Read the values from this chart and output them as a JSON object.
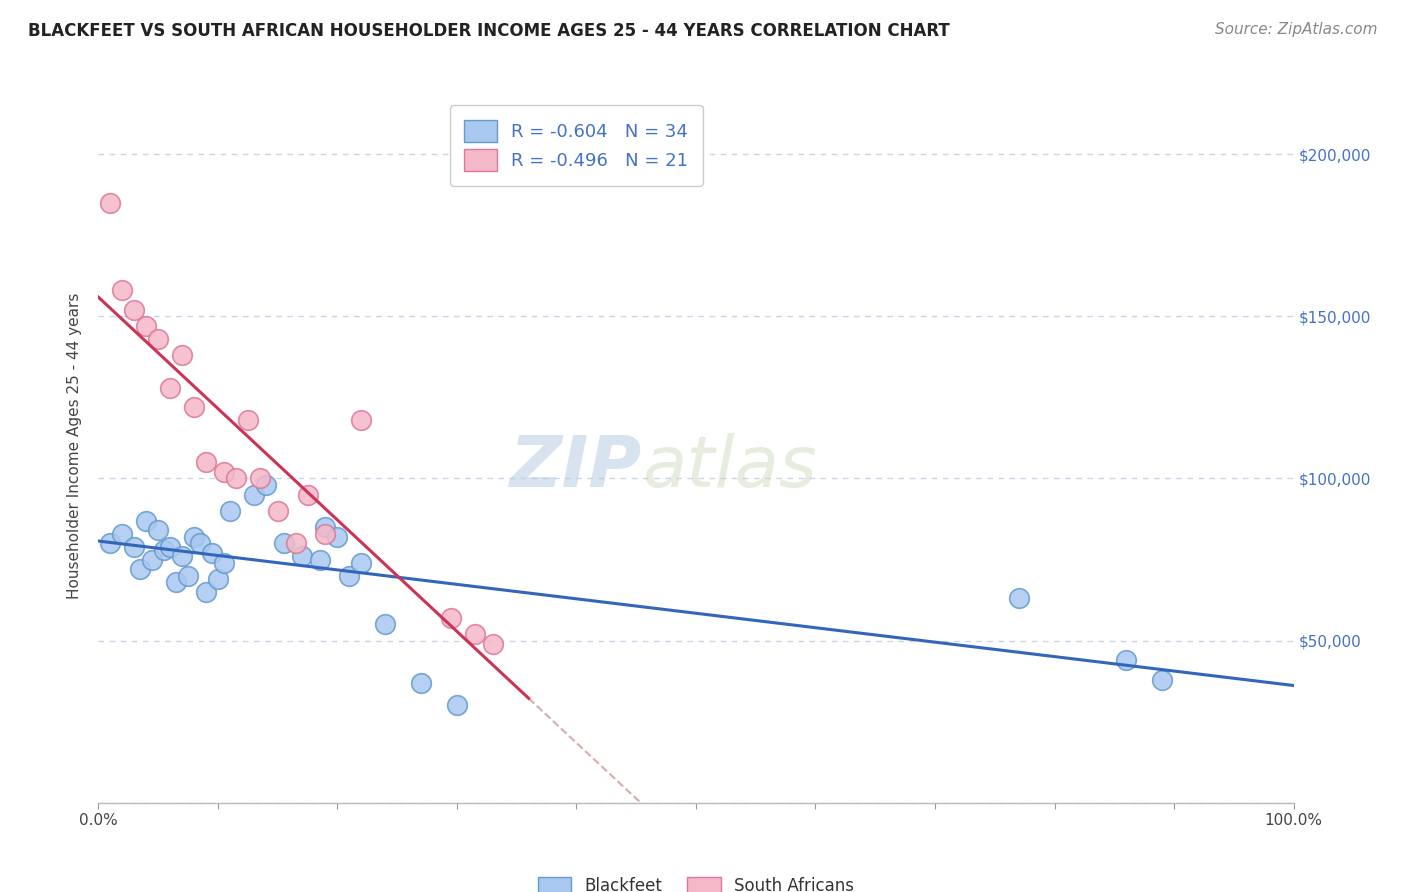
{
  "title": "BLACKFEET VS SOUTH AFRICAN HOUSEHOLDER INCOME AGES 25 - 44 YEARS CORRELATION CHART",
  "source": "Source: ZipAtlas.com",
  "ylabel": "Householder Income Ages 25 - 44 years",
  "xlim": [
    0.0,
    1.0
  ],
  "ylim": [
    0,
    220000
  ],
  "xticks": [
    0.0,
    0.1,
    0.2,
    0.3,
    0.4,
    0.5,
    0.6,
    0.7,
    0.8,
    0.9,
    1.0
  ],
  "xticklabels": [
    "0.0%",
    "",
    "",
    "",
    "",
    "",
    "",
    "",
    "",
    "",
    "100.0%"
  ],
  "yticks": [
    0,
    50000,
    100000,
    150000,
    200000
  ],
  "yticklabels": [
    "",
    "$50,000",
    "$100,000",
    "$150,000",
    "$200,000"
  ],
  "legend_r_blackfeet": "-0.604",
  "legend_n_blackfeet": "34",
  "legend_r_sa": "-0.496",
  "legend_n_sa": "21",
  "watermark_zip": "ZIP",
  "watermark_atlas": "atlas",
  "blackfeet_color": "#a8c8f0",
  "blackfeet_edge_color": "#6699cc",
  "sa_color": "#f5b8c8",
  "sa_edge_color": "#dd7799",
  "line_blackfeet_color": "#3366bb",
  "line_sa_color": "#cc3355",
  "dash_color": "#ddaaaa",
  "grid_color": "#c8d4e8",
  "blackfeet_x": [
    0.01,
    0.02,
    0.03,
    0.035,
    0.04,
    0.045,
    0.05,
    0.055,
    0.06,
    0.065,
    0.07,
    0.075,
    0.08,
    0.085,
    0.09,
    0.095,
    0.1,
    0.105,
    0.11,
    0.13,
    0.14,
    0.155,
    0.17,
    0.185,
    0.19,
    0.2,
    0.21,
    0.22,
    0.24,
    0.27,
    0.3,
    0.77,
    0.86,
    0.89
  ],
  "blackfeet_y": [
    80000,
    83000,
    79000,
    72000,
    87000,
    75000,
    84000,
    78000,
    79000,
    68000,
    76000,
    70000,
    82000,
    80000,
    65000,
    77000,
    69000,
    74000,
    90000,
    95000,
    98000,
    80000,
    76000,
    75000,
    85000,
    82000,
    70000,
    74000,
    55000,
    37000,
    30000,
    63000,
    44000,
    38000
  ],
  "sa_x": [
    0.01,
    0.02,
    0.03,
    0.04,
    0.05,
    0.06,
    0.07,
    0.08,
    0.09,
    0.105,
    0.115,
    0.125,
    0.135,
    0.15,
    0.165,
    0.175,
    0.19,
    0.22,
    0.295,
    0.315,
    0.33
  ],
  "sa_y": [
    185000,
    158000,
    152000,
    147000,
    143000,
    128000,
    138000,
    122000,
    105000,
    102000,
    100000,
    118000,
    100000,
    90000,
    80000,
    95000,
    83000,
    118000,
    57000,
    52000,
    49000
  ],
  "title_fontsize": 12,
  "axis_label_fontsize": 11,
  "tick_fontsize": 11,
  "legend_fontsize": 13,
  "source_fontsize": 11,
  "watermark_fontsize_zip": 52,
  "watermark_fontsize_atlas": 52,
  "background_color": "#ffffff"
}
